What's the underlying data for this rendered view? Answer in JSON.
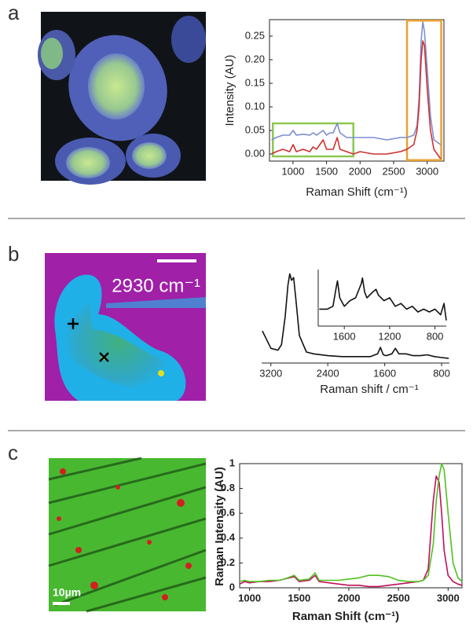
{
  "panels": [
    {
      "label": "a"
    },
    {
      "label": "b",
      "image_label": "2930 cm⁻¹"
    },
    {
      "label": "c",
      "scale_bar": "10µm"
    }
  ],
  "chart_data": [
    {
      "type": "line",
      "xlabel": "Raman Shift (cm⁻¹)",
      "ylabel": "Intensity (AU)",
      "frame": "box",
      "x": [
        680,
        750,
        850,
        950,
        1003,
        1050,
        1150,
        1250,
        1300,
        1350,
        1450,
        1500,
        1550,
        1600,
        1660,
        1700,
        1800,
        1900,
        2000,
        2200,
        2400,
        2600,
        2700,
        2800,
        2850,
        2880,
        2910,
        2935,
        2960,
        3000,
        3050,
        3100,
        3200
      ],
      "series": [
        {
          "color": "#7b8fd0",
          "values": [
            0.03,
            0.035,
            0.04,
            0.04,
            0.05,
            0.04,
            0.042,
            0.04,
            0.045,
            0.04,
            0.05,
            0.04,
            0.045,
            0.045,
            0.065,
            0.045,
            0.035,
            0.035,
            0.035,
            0.035,
            0.03,
            0.035,
            0.035,
            0.04,
            0.06,
            0.12,
            0.24,
            0.28,
            0.26,
            0.18,
            0.08,
            0.03,
            0.02
          ]
        },
        {
          "color": "#d03030",
          "values": [
            0.0,
            0.005,
            0.01,
            0.005,
            0.02,
            0.005,
            0.01,
            0.005,
            0.015,
            0.01,
            0.03,
            0.01,
            0.01,
            0.01,
            0.035,
            0.01,
            0.005,
            0.0,
            0.005,
            0.0,
            0.0,
            0.005,
            0.01,
            0.02,
            0.05,
            0.1,
            0.2,
            0.24,
            0.23,
            0.14,
            0.05,
            0.01,
            -0.01
          ]
        }
      ],
      "highlights": [
        {
          "x": [
            700,
            1900
          ],
          "y": [
            -0.005,
            0.065
          ],
          "color": "#8cc850"
        },
        {
          "x": [
            2700,
            3210
          ],
          "y": [
            -0.013,
            0.283
          ],
          "color": "#e8a030"
        }
      ],
      "xlim": [
        650,
        3250
      ],
      "xticks": [
        1000,
        1500,
        2000,
        2500,
        3000
      ],
      "ylim": [
        -0.015,
        0.285
      ],
      "yticks": [
        {
          "value": 0,
          "label": "0.00"
        },
        0.05,
        {
          "value": 0.1,
          "label": "0.10"
        },
        0.15,
        {
          "value": 0.2,
          "label": "0.20"
        },
        0.25
      ]
    },
    {
      "type": "line",
      "xlabel": "Raman shift / cm⁻¹",
      "frame": "bottom",
      "x": [
        3320,
        3200,
        3100,
        3050,
        3000,
        2960,
        2935,
        2910,
        2880,
        2850,
        2800,
        2700,
        2600,
        2400,
        2200,
        2000,
        1800,
        1700,
        1660,
        1620,
        1580,
        1500,
        1450,
        1400,
        1300,
        1200,
        1100,
        1000,
        900,
        800,
        700
      ],
      "series": [
        {
          "color": "#111111",
          "values": [
            0.35,
            0.16,
            0.14,
            0.2,
            0.5,
            0.85,
            0.97,
            0.9,
            0.93,
            0.7,
            0.3,
            0.12,
            0.1,
            0.08,
            0.07,
            0.07,
            0.07,
            0.1,
            0.17,
            0.09,
            0.08,
            0.1,
            0.16,
            0.1,
            0.1,
            0.08,
            0.08,
            0.09,
            0.07,
            0.06,
            0.05
          ]
        }
      ],
      "xlim": [
        3330,
        690
      ],
      "xticks": [
        3200,
        2400,
        1600,
        800
      ],
      "ylim": [
        0,
        1
      ]
    },
    {
      "type": "line",
      "frame": "left-bottom",
      "x": [
        1820,
        1750,
        1700,
        1670,
        1660,
        1640,
        1600,
        1550,
        1500,
        1450,
        1440,
        1420,
        1400,
        1350,
        1320,
        1300,
        1250,
        1200,
        1150,
        1100,
        1050,
        1000,
        950,
        900,
        850,
        800,
        750,
        720,
        700
      ],
      "series": [
        {
          "color": "#111111",
          "values": [
            0.3,
            0.3,
            0.35,
            0.7,
            0.8,
            0.5,
            0.35,
            0.45,
            0.5,
            0.75,
            0.85,
            0.6,
            0.5,
            0.6,
            0.65,
            0.55,
            0.45,
            0.5,
            0.35,
            0.4,
            0.3,
            0.35,
            0.25,
            0.3,
            0.25,
            0.3,
            0.2,
            0.4,
            0.1
          ]
        }
      ],
      "xlim": [
        1830,
        700
      ],
      "xticks": [
        1600,
        1200,
        800
      ],
      "ylim": [
        0,
        1
      ]
    },
    {
      "type": "line",
      "xlabel": "Raman Shift (cm⁻¹)",
      "ylabel": "Raman Intensity (AU)",
      "frame": "box",
      "bold_labels": true,
      "x": [
        900,
        950,
        1000,
        1100,
        1200,
        1300,
        1350,
        1450,
        1500,
        1600,
        1660,
        1700,
        1800,
        1900,
        2000,
        2100,
        2200,
        2300,
        2400,
        2500,
        2600,
        2700,
        2750,
        2800,
        2850,
        2880,
        2910,
        2935,
        2960,
        3000,
        3050,
        3100,
        3140
      ],
      "series": [
        {
          "color": "#c0105a",
          "values": [
            0.03,
            0.05,
            0.04,
            0.05,
            0.05,
            0.06,
            0.07,
            0.09,
            0.05,
            0.06,
            0.1,
            0.05,
            0.04,
            0.03,
            0.02,
            0.02,
            0.01,
            0.01,
            0.02,
            0.03,
            0.04,
            0.05,
            0.06,
            0.15,
            0.7,
            0.9,
            0.85,
            0.6,
            0.3,
            0.1,
            0.05,
            0.03,
            0.02
          ]
        },
        {
          "color": "#50c020",
          "values": [
            0.05,
            0.06,
            0.05,
            0.05,
            0.06,
            0.06,
            0.07,
            0.1,
            0.06,
            0.07,
            0.12,
            0.06,
            0.06,
            0.06,
            0.07,
            0.08,
            0.1,
            0.1,
            0.09,
            0.06,
            0.05,
            0.05,
            0.06,
            0.1,
            0.35,
            0.7,
            0.9,
            1.0,
            0.95,
            0.6,
            0.2,
            0.08,
            0.05
          ]
        }
      ],
      "xlim": [
        900,
        3140
      ],
      "xticks": [
        1000,
        1500,
        2000,
        2500,
        3000
      ],
      "ylim": [
        0,
        1
      ],
      "yticks": [
        0,
        0.2,
        0.4,
        0.6,
        0.8,
        1
      ]
    }
  ]
}
